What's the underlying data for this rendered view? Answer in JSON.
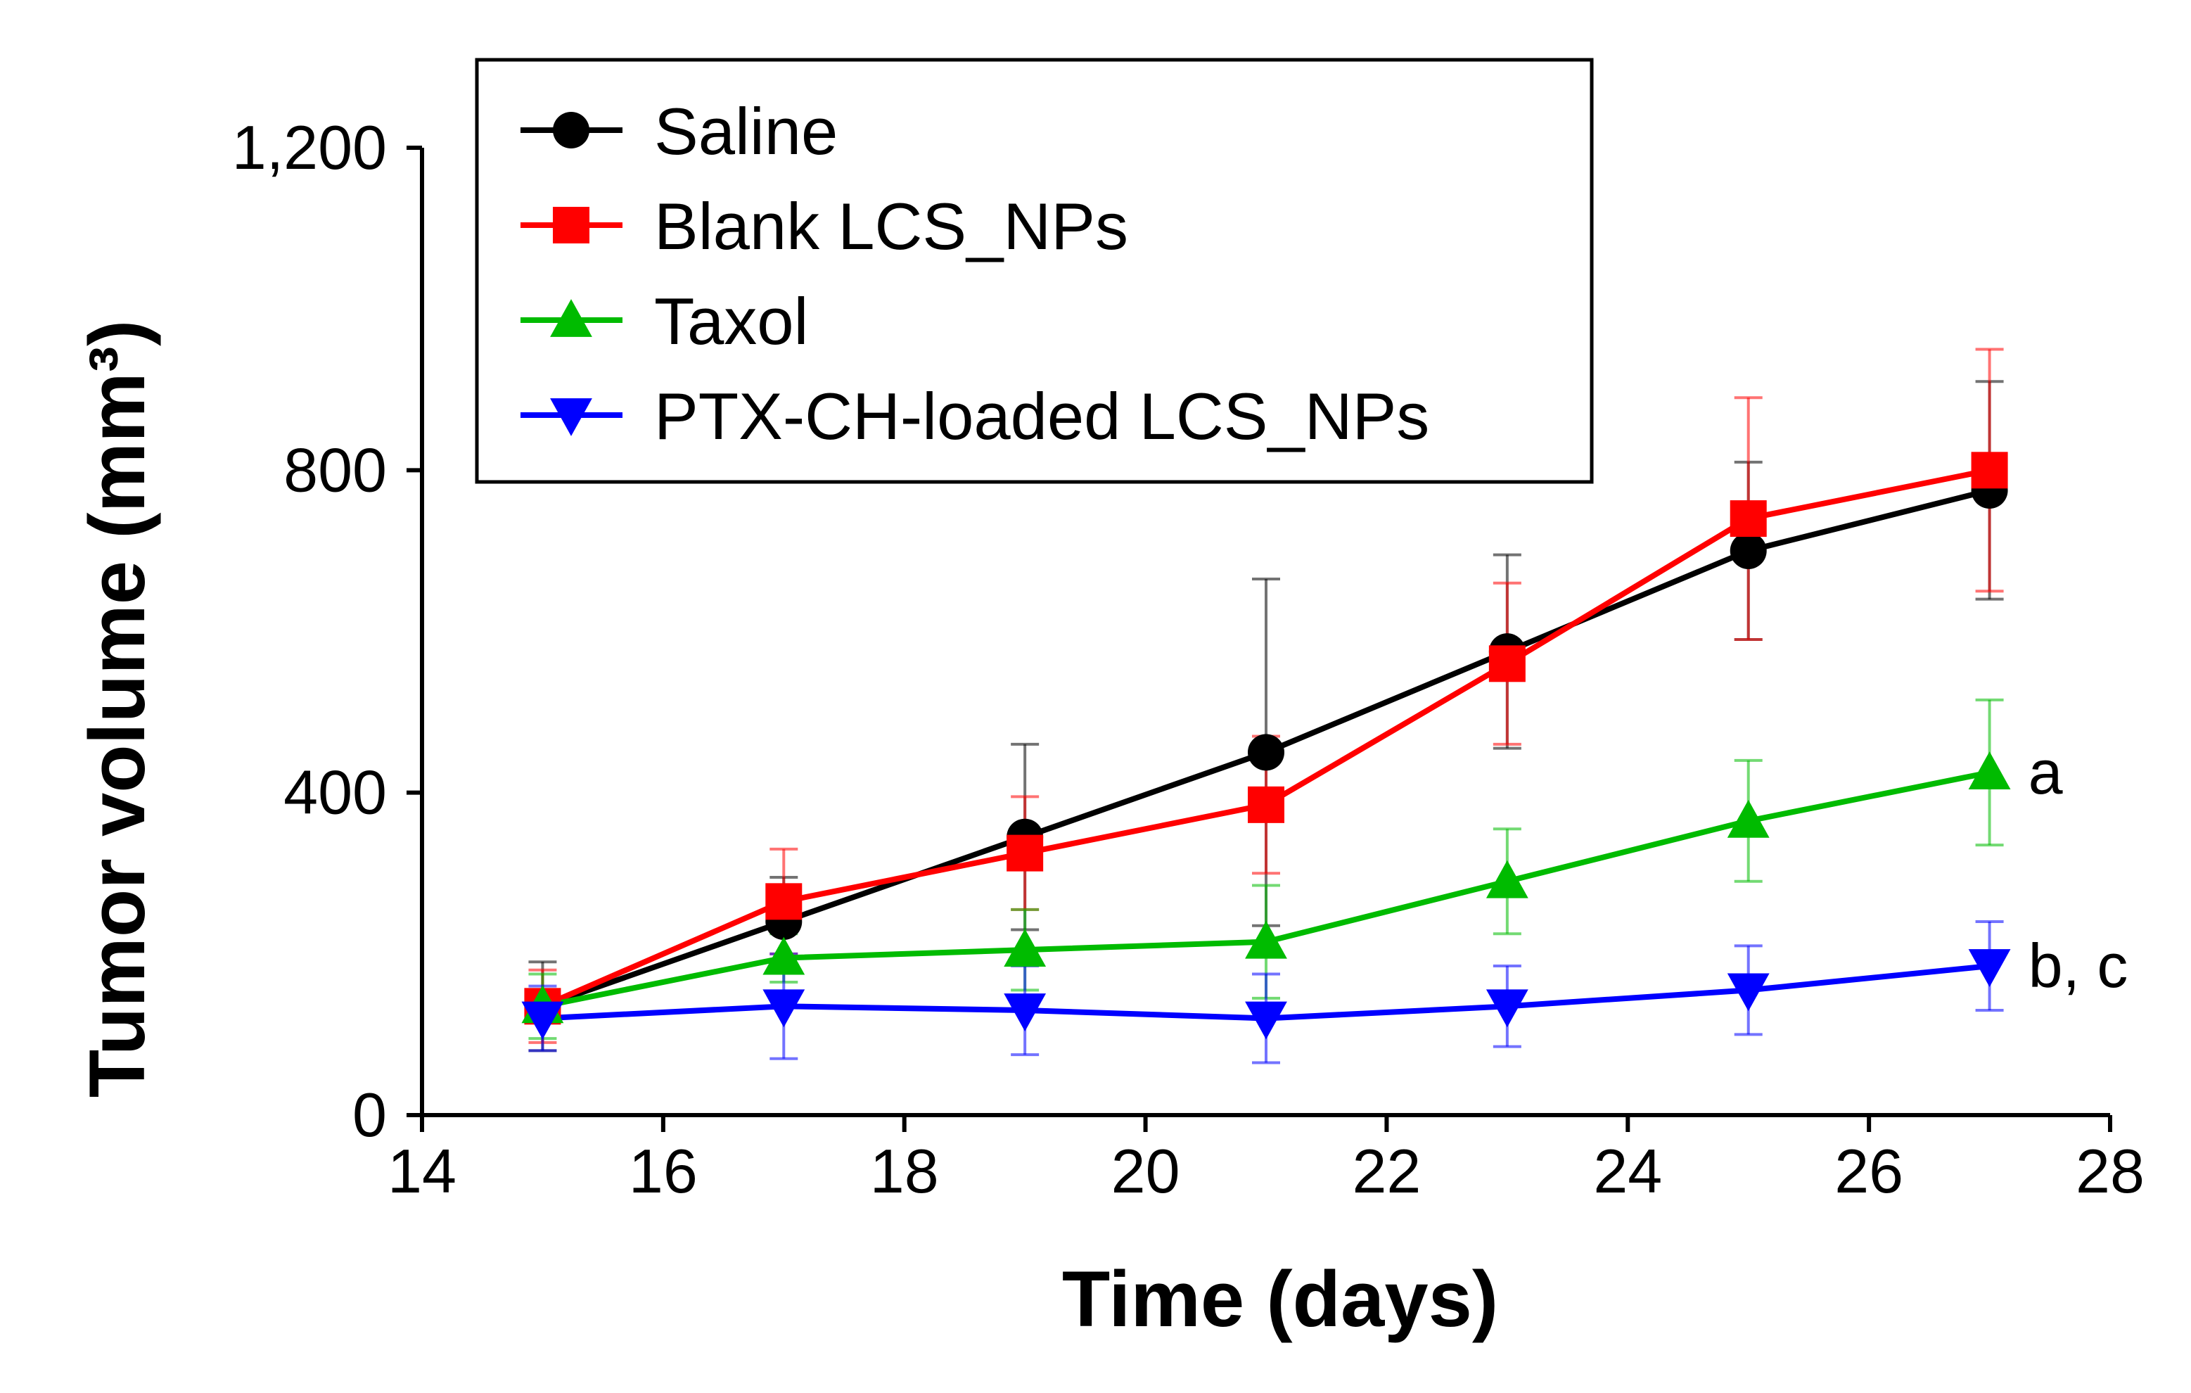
{
  "chart_data": {
    "type": "line",
    "title": "",
    "xlabel": "Time (days)",
    "ylabel": "Tumor volume (mm³)",
    "xlim": [
      14,
      28
    ],
    "ylim": [
      0,
      1200
    ],
    "x_ticks": [
      14,
      16,
      18,
      20,
      22,
      24,
      26,
      28
    ],
    "y_ticks": [
      0,
      400,
      800,
      1200
    ],
    "x_tick_labels": [
      "14",
      "16",
      "18",
      "20",
      "22",
      "24",
      "26",
      "28"
    ],
    "y_tick_labels": [
      "0",
      "400",
      "800",
      "1,200"
    ],
    "grid": false,
    "legend_position": "top-left",
    "x": [
      15,
      17,
      19,
      21,
      23,
      25,
      27
    ],
    "series": [
      {
        "name": "Saline",
        "color": "#000000",
        "marker": "circle",
        "values": [
          135,
          240,
          345,
          450,
          575,
          700,
          775
        ],
        "errors": [
          55,
          55,
          115,
          215,
          120,
          110,
          135
        ]
      },
      {
        "name": "Blank LCS_NPs",
        "color": "#ff0000",
        "marker": "square",
        "values": [
          135,
          265,
          325,
          385,
          560,
          740,
          800
        ],
        "errors": [
          45,
          65,
          70,
          85,
          100,
          150,
          150
        ]
      },
      {
        "name": "Taxol",
        "color": "#00bb00",
        "marker": "triangle-up",
        "values": [
          135,
          195,
          205,
          215,
          290,
          365,
          425
        ],
        "errors": [
          40,
          30,
          50,
          70,
          65,
          75,
          90
        ]
      },
      {
        "name": "PTX-CH-loaded LCS_NPs",
        "color": "#0000ff",
        "marker": "triangle-down",
        "values": [
          120,
          135,
          130,
          120,
          135,
          155,
          185
        ],
        "errors": [
          40,
          65,
          55,
          55,
          50,
          55,
          55
        ]
      }
    ],
    "annotations": [
      {
        "text": "a",
        "series": "Taxol",
        "x": 27
      },
      {
        "text": "b, c",
        "series": "PTX-CH-loaded LCS_NPs",
        "x": 27
      }
    ]
  }
}
